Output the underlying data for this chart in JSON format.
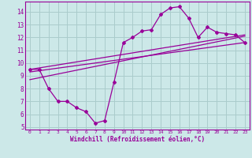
{
  "xlabel": "Windchill (Refroidissement éolien,°C)",
  "bg_color": "#cce8e8",
  "grid_color": "#aacccc",
  "line_color": "#990099",
  "spine_color": "#660066",
  "xlim": [
    -0.5,
    23.5
  ],
  "ylim": [
    4.8,
    14.8
  ],
  "yticks": [
    5,
    6,
    7,
    8,
    9,
    10,
    11,
    12,
    13,
    14
  ],
  "xticks": [
    0,
    1,
    2,
    3,
    4,
    5,
    6,
    7,
    8,
    9,
    10,
    11,
    12,
    13,
    14,
    15,
    16,
    17,
    18,
    19,
    20,
    21,
    22,
    23
  ],
  "main_line_x": [
    0,
    1,
    2,
    3,
    4,
    5,
    6,
    7,
    8,
    9,
    10,
    11,
    12,
    13,
    14,
    15,
    16,
    17,
    18,
    19,
    20,
    21,
    22,
    23
  ],
  "main_line_y": [
    9.5,
    9.5,
    8.0,
    7.0,
    7.0,
    6.5,
    6.2,
    5.3,
    5.5,
    8.5,
    11.6,
    12.0,
    12.5,
    12.6,
    13.8,
    14.3,
    14.4,
    13.5,
    12.0,
    12.8,
    12.4,
    12.3,
    12.2,
    11.6
  ],
  "reg_line1_x": [
    0,
    23
  ],
  "reg_line1_y": [
    9.5,
    12.2
  ],
  "reg_line2_x": [
    0,
    23
  ],
  "reg_line2_y": [
    9.3,
    11.6
  ],
  "reg_line3_x": [
    0,
    23
  ],
  "reg_line3_y": [
    8.7,
    12.1
  ]
}
